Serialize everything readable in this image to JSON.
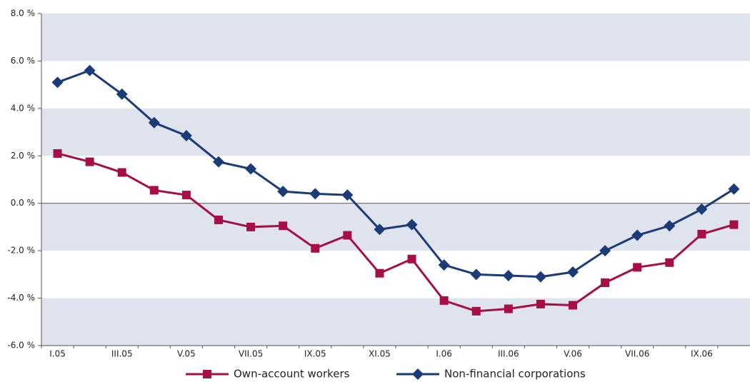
{
  "chart_data": {
    "type": "line",
    "categories": [
      "I.05",
      null,
      "III.05",
      null,
      "V.05",
      null,
      "VII.05",
      null,
      "IX.05",
      null,
      "XI.05",
      null,
      "I.06",
      null,
      "III.06",
      null,
      "V.06",
      null,
      "VII.06",
      null,
      "IX.06",
      null
    ],
    "series": [
      {
        "name": "Own-account workers",
        "color": "#a50f45",
        "marker": "square",
        "values": [
          2.1,
          1.75,
          1.3,
          0.55,
          0.35,
          -0.7,
          -1.0,
          -0.95,
          -1.9,
          -1.35,
          -2.95,
          -2.35,
          -4.1,
          -4.55,
          -4.45,
          -4.25,
          -4.3,
          -3.35,
          -2.7,
          -2.5,
          -1.3,
          -0.9
        ]
      },
      {
        "name": "Non-financial corporations",
        "color": "#1a3a78",
        "marker": "diamond",
        "values": [
          5.1,
          5.6,
          4.6,
          3.4,
          2.85,
          1.75,
          1.45,
          0.5,
          0.4,
          0.35,
          -1.1,
          -0.9,
          -2.6,
          -3.0,
          -3.05,
          -3.1,
          -2.9,
          -2.0,
          -1.35,
          -0.95,
          -0.25,
          0.6
        ]
      }
    ],
    "ylim": [
      -6,
      8
    ],
    "yticks": [
      {
        "value": -6,
        "label": "-6.0 %"
      },
      {
        "value": -4,
        "label": "-4.0 %"
      },
      {
        "value": -2,
        "label": "-2.0 %"
      },
      {
        "value": 0,
        "label": "0.0 %"
      },
      {
        "value": 2,
        "label": "2.0 %"
      },
      {
        "value": 4,
        "label": "4.0 %"
      },
      {
        "value": 6,
        "label": "6.0 %"
      },
      {
        "value": 8,
        "label": "8.0 %"
      }
    ],
    "band_color": "#dfe3ee"
  }
}
